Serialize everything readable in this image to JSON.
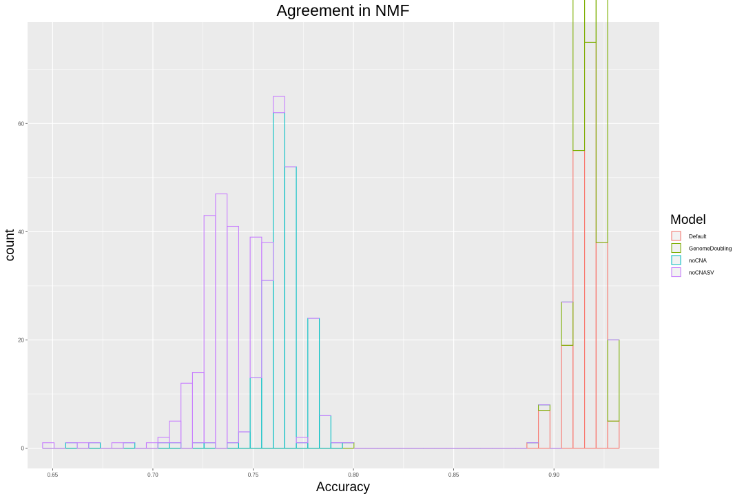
{
  "chart_data": {
    "type": "histogram",
    "title": "Agreement in NMF",
    "xlabel": "Accuracy",
    "ylabel": "count",
    "xlim": [
      0.6375,
      0.9525
    ],
    "ylim": [
      -3.75,
      78.75
    ],
    "x_ticks": [
      {
        "value": 0.65,
        "label": "0.65"
      },
      {
        "value": 0.7,
        "label": "0.70"
      },
      {
        "value": 0.75,
        "label": "0.75"
      },
      {
        "value": 0.8,
        "label": "0.80"
      },
      {
        "value": 0.85,
        "label": "0.85"
      },
      {
        "value": 0.9,
        "label": "0.90"
      }
    ],
    "y_ticks": [
      {
        "value": 0,
        "label": "0"
      },
      {
        "value": 20,
        "label": "20"
      },
      {
        "value": 40,
        "label": "40"
      },
      {
        "value": 60,
        "label": "60"
      }
    ],
    "bins": {
      "start": 0.645,
      "width": 0.00575,
      "count": 50
    },
    "grid": true,
    "legend": {
      "title": "Model",
      "position": "right"
    },
    "series": [
      {
        "name": "Default",
        "color": "#F8766D",
        "bars": [
          {
            "bin": 42,
            "count": 1
          },
          {
            "bin": 43,
            "count": 7
          },
          {
            "bin": 45,
            "count": 19
          },
          {
            "bin": 46,
            "count": 55
          },
          {
            "bin": 47,
            "count": 75
          },
          {
            "bin": 48,
            "count": 38
          },
          {
            "bin": 49,
            "count": 5
          }
        ]
      },
      {
        "name": "GenomeDoubling",
        "color": "#7CAE00",
        "bars": [
          {
            "bin": 26,
            "count": 1
          },
          {
            "bin": 43,
            "count": 1
          },
          {
            "bin": 45,
            "count": 8
          },
          {
            "bin": 46,
            "count": 33
          },
          {
            "bin": 47,
            "count": 67
          },
          {
            "bin": 48,
            "count": 75
          },
          {
            "bin": 49,
            "count": 15
          }
        ]
      },
      {
        "name": "noCNA",
        "color": "#00BFC4",
        "bars": [
          {
            "bin": 2,
            "count": 1
          },
          {
            "bin": 4,
            "count": 1
          },
          {
            "bin": 7,
            "count": 1
          },
          {
            "bin": 10,
            "count": 1
          },
          {
            "bin": 11,
            "count": 1
          },
          {
            "bin": 13,
            "count": 1
          },
          {
            "bin": 14,
            "count": 1
          },
          {
            "bin": 16,
            "count": 1
          },
          {
            "bin": 17,
            "count": 3
          },
          {
            "bin": 18,
            "count": 13
          },
          {
            "bin": 19,
            "count": 31
          },
          {
            "bin": 20,
            "count": 62
          },
          {
            "bin": 21,
            "count": 52
          },
          {
            "bin": 22,
            "count": 1
          },
          {
            "bin": 23,
            "count": 24
          },
          {
            "bin": 24,
            "count": 6
          },
          {
            "bin": 25,
            "count": 1
          }
        ]
      },
      {
        "name": "noCNASV",
        "color": "#C77CFF",
        "bars": [
          {
            "bin": 0,
            "count": 1
          },
          {
            "bin": 3,
            "count": 1
          },
          {
            "bin": 6,
            "count": 1
          },
          {
            "bin": 9,
            "count": 1
          },
          {
            "bin": 10,
            "count": 1
          },
          {
            "bin": 11,
            "count": 4
          },
          {
            "bin": 12,
            "count": 12
          },
          {
            "bin": 13,
            "count": 13
          },
          {
            "bin": 14,
            "count": 42
          },
          {
            "bin": 15,
            "count": 47
          },
          {
            "bin": 16,
            "count": 40
          },
          {
            "bin": 18,
            "count": 26
          },
          {
            "bin": 19,
            "count": 7
          },
          {
            "bin": 20,
            "count": 3
          },
          {
            "bin": 22,
            "count": 1
          }
        ]
      }
    ]
  }
}
